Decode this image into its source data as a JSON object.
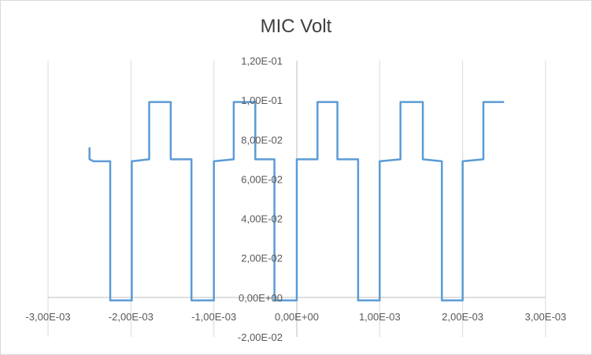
{
  "chart_data": {
    "type": "line",
    "title": "MIC Volt",
    "xlabel": "",
    "ylabel": "",
    "xlim": [
      -0.003,
      0.003
    ],
    "ylim": [
      -0.02,
      0.12
    ],
    "x_ticks": [
      {
        "value": -0.003,
        "label": "-3,00E-03"
      },
      {
        "value": -0.002,
        "label": "-2,00E-03"
      },
      {
        "value": -0.001,
        "label": "-1,00E-03"
      },
      {
        "value": 0.0,
        "label": "0,00E+00"
      },
      {
        "value": 0.001,
        "label": "1,00E-03"
      },
      {
        "value": 0.002,
        "label": "2,00E-03"
      },
      {
        "value": 0.003,
        "label": "3,00E-03"
      }
    ],
    "y_ticks": [
      {
        "value": -0.02,
        "label": "-2,00E-02"
      },
      {
        "value": 0.0,
        "label": "0,00E+00"
      },
      {
        "value": 0.02,
        "label": "2,00E-02"
      },
      {
        "value": 0.04,
        "label": "4,00E-02"
      },
      {
        "value": 0.06,
        "label": "6,00E-02"
      },
      {
        "value": 0.08,
        "label": "8,00E-02"
      },
      {
        "value": 0.1,
        "label": "1,00E-01"
      },
      {
        "value": 0.12,
        "label": "1,20E-01"
      }
    ],
    "grid": {
      "vertical": true,
      "horizontal": false
    },
    "legend": "none",
    "series": [
      {
        "color": "#5b9bd5",
        "x": [
          -0.0025,
          -0.0025,
          -0.00245,
          -0.00238,
          -0.00225,
          -0.00225,
          -0.00199,
          -0.00199,
          -0.00178,
          -0.00178,
          -0.00152,
          -0.00152,
          -0.00127,
          -0.00127,
          -0.001,
          -0.001,
          -0.00076,
          -0.00076,
          -0.0005,
          -0.0005,
          -0.00027,
          -0.00027,
          0.0,
          0.0,
          0.00025,
          0.00025,
          0.00049,
          0.00049,
          0.00074,
          0.00074,
          0.001,
          0.001,
          0.00125,
          0.00125,
          0.00152,
          0.00152,
          0.00175,
          0.00175,
          0.002,
          0.002,
          0.00225,
          0.00225,
          0.0025
        ],
        "values": [
          0.076,
          0.07,
          0.069,
          0.069,
          0.069,
          -0.0015,
          -0.0015,
          0.069,
          0.07,
          0.099,
          0.099,
          0.07,
          0.07,
          -0.0015,
          -0.0015,
          0.069,
          0.07,
          0.099,
          0.099,
          0.07,
          0.07,
          -0.0015,
          -0.0015,
          0.07,
          0.07,
          0.099,
          0.099,
          0.07,
          0.07,
          -0.0015,
          -0.0015,
          0.069,
          0.07,
          0.099,
          0.099,
          0.07,
          0.069,
          -0.0015,
          -0.0015,
          0.069,
          0.07,
          0.099,
          0.099
        ]
      }
    ]
  }
}
